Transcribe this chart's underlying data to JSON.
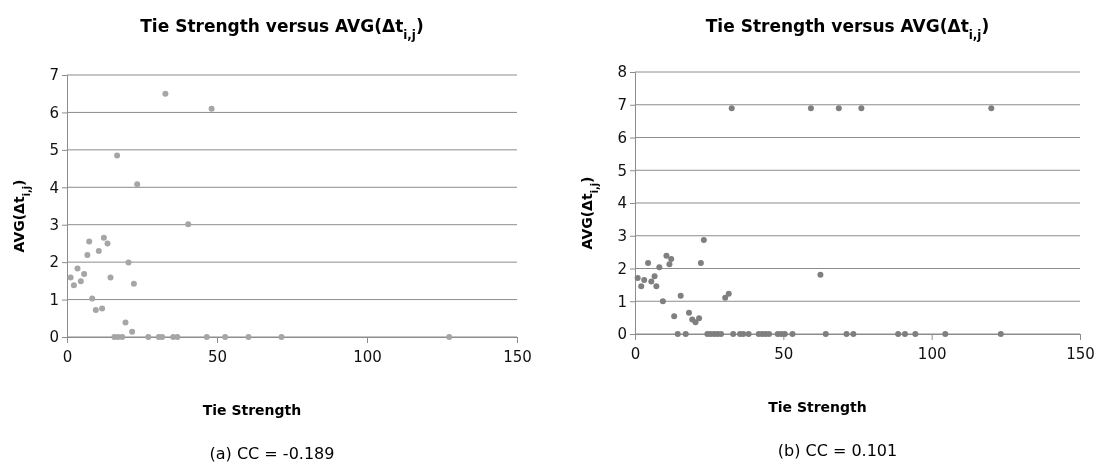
{
  "chart_data": [
    {
      "type": "scatter",
      "title": "Tie Strength versus AVG(Δt$_{i,j}$)",
      "xlabel": "Tie Strength",
      "ylabel": "AVG(Δt$_{i,j}$)",
      "xlim": [
        0,
        150
      ],
      "xticks": [
        0,
        50,
        100,
        150
      ],
      "ylim": [
        0,
        7
      ],
      "yticks": [
        0,
        1,
        2,
        3,
        4,
        5,
        6,
        7
      ],
      "grid": "y",
      "marker": "circle",
      "annotations": [
        "(a) CC = -0.189"
      ],
      "series": [
        {
          "color": "#a6a6a6",
          "x": [
            1.2,
            2.3,
            3.5,
            4.6,
            5.7,
            6.8,
            7.4,
            8.4,
            9.6,
            10.6,
            11.7,
            12.3,
            13.5,
            14.5,
            16.7,
            19.5,
            20.5,
            21.7,
            22.3,
            23.4,
            32.8,
            40.4,
            48.2,
            15.8,
            17,
            18.4,
            27.1,
            30.6,
            31.7,
            35.4,
            36.8,
            46.6,
            52.7,
            60.5,
            71.5,
            127.4
          ],
          "values": [
            1.59,
            1.38,
            1.83,
            1.49,
            1.68,
            2.19,
            2.55,
            1.03,
            0.72,
            2.3,
            0.76,
            2.65,
            2.5,
            1.59,
            4.85,
            0.39,
            1.99,
            0.14,
            1.42,
            4.08,
            6.5,
            3.01,
            6.1,
            0,
            0,
            0,
            0,
            0,
            0,
            0,
            0,
            0,
            0,
            0,
            0,
            0
          ]
        }
      ]
    },
    {
      "type": "scatter",
      "title": "Tie Strength versus AVG(Δt$_{i,j}$)",
      "xlabel": "Tie Strength",
      "ylabel": "AVG(Δt$_{i,j}$)",
      "xlim": [
        0,
        150
      ],
      "xticks": [
        0,
        50,
        100,
        150
      ],
      "ylim": [
        0,
        8
      ],
      "yticks": [
        0,
        1,
        2,
        3,
        4,
        5,
        6,
        7,
        8
      ],
      "grid": "y",
      "marker": "circle",
      "annotations": [
        "(b) CC = 0.101"
      ],
      "series": [
        {
          "color": "#7f7f7f",
          "x": [
            0.9,
            2.1,
            3.1,
            4.4,
            5.5,
            6.6,
            7.2,
            8.2,
            9.4,
            10.6,
            11.6,
            12.2,
            13.2,
            15.4,
            18.2,
            19.3,
            20.4,
            21.6,
            22.2,
            23.2,
            30.4,
            31.6,
            32.6,
            59.3,
            62.5,
            68.7,
            76.3,
            120.1,
            14.4,
            17.1,
            24.4,
            25.5,
            26.7,
            27.8,
            29,
            33.1,
            35.4,
            36.5,
            38.3,
            41.7,
            42.9,
            44,
            45.2,
            48.1,
            49.3,
            50.5,
            53.1,
            64.3,
            71.3,
            73.6,
            88.7,
            91,
            94.5,
            104.6,
            123.3
          ],
          "values": [
            1.71,
            1.46,
            1.65,
            2.17,
            1.6,
            1.76,
            1.46,
            2.04,
            1,
            2.39,
            2.13,
            2.29,
            0.54,
            1.17,
            0.65,
            0.44,
            0.36,
            0.48,
            2.17,
            2.87,
            1.11,
            1.23,
            6.89,
            6.89,
            1.81,
            6.89,
            6.89,
            6.89,
            0,
            0,
            0,
            0,
            0,
            0,
            0,
            0,
            0,
            0,
            0,
            0,
            0,
            0,
            0,
            0,
            0,
            0,
            0,
            0,
            0,
            0,
            0,
            0,
            0,
            0,
            0
          ]
        }
      ]
    }
  ]
}
